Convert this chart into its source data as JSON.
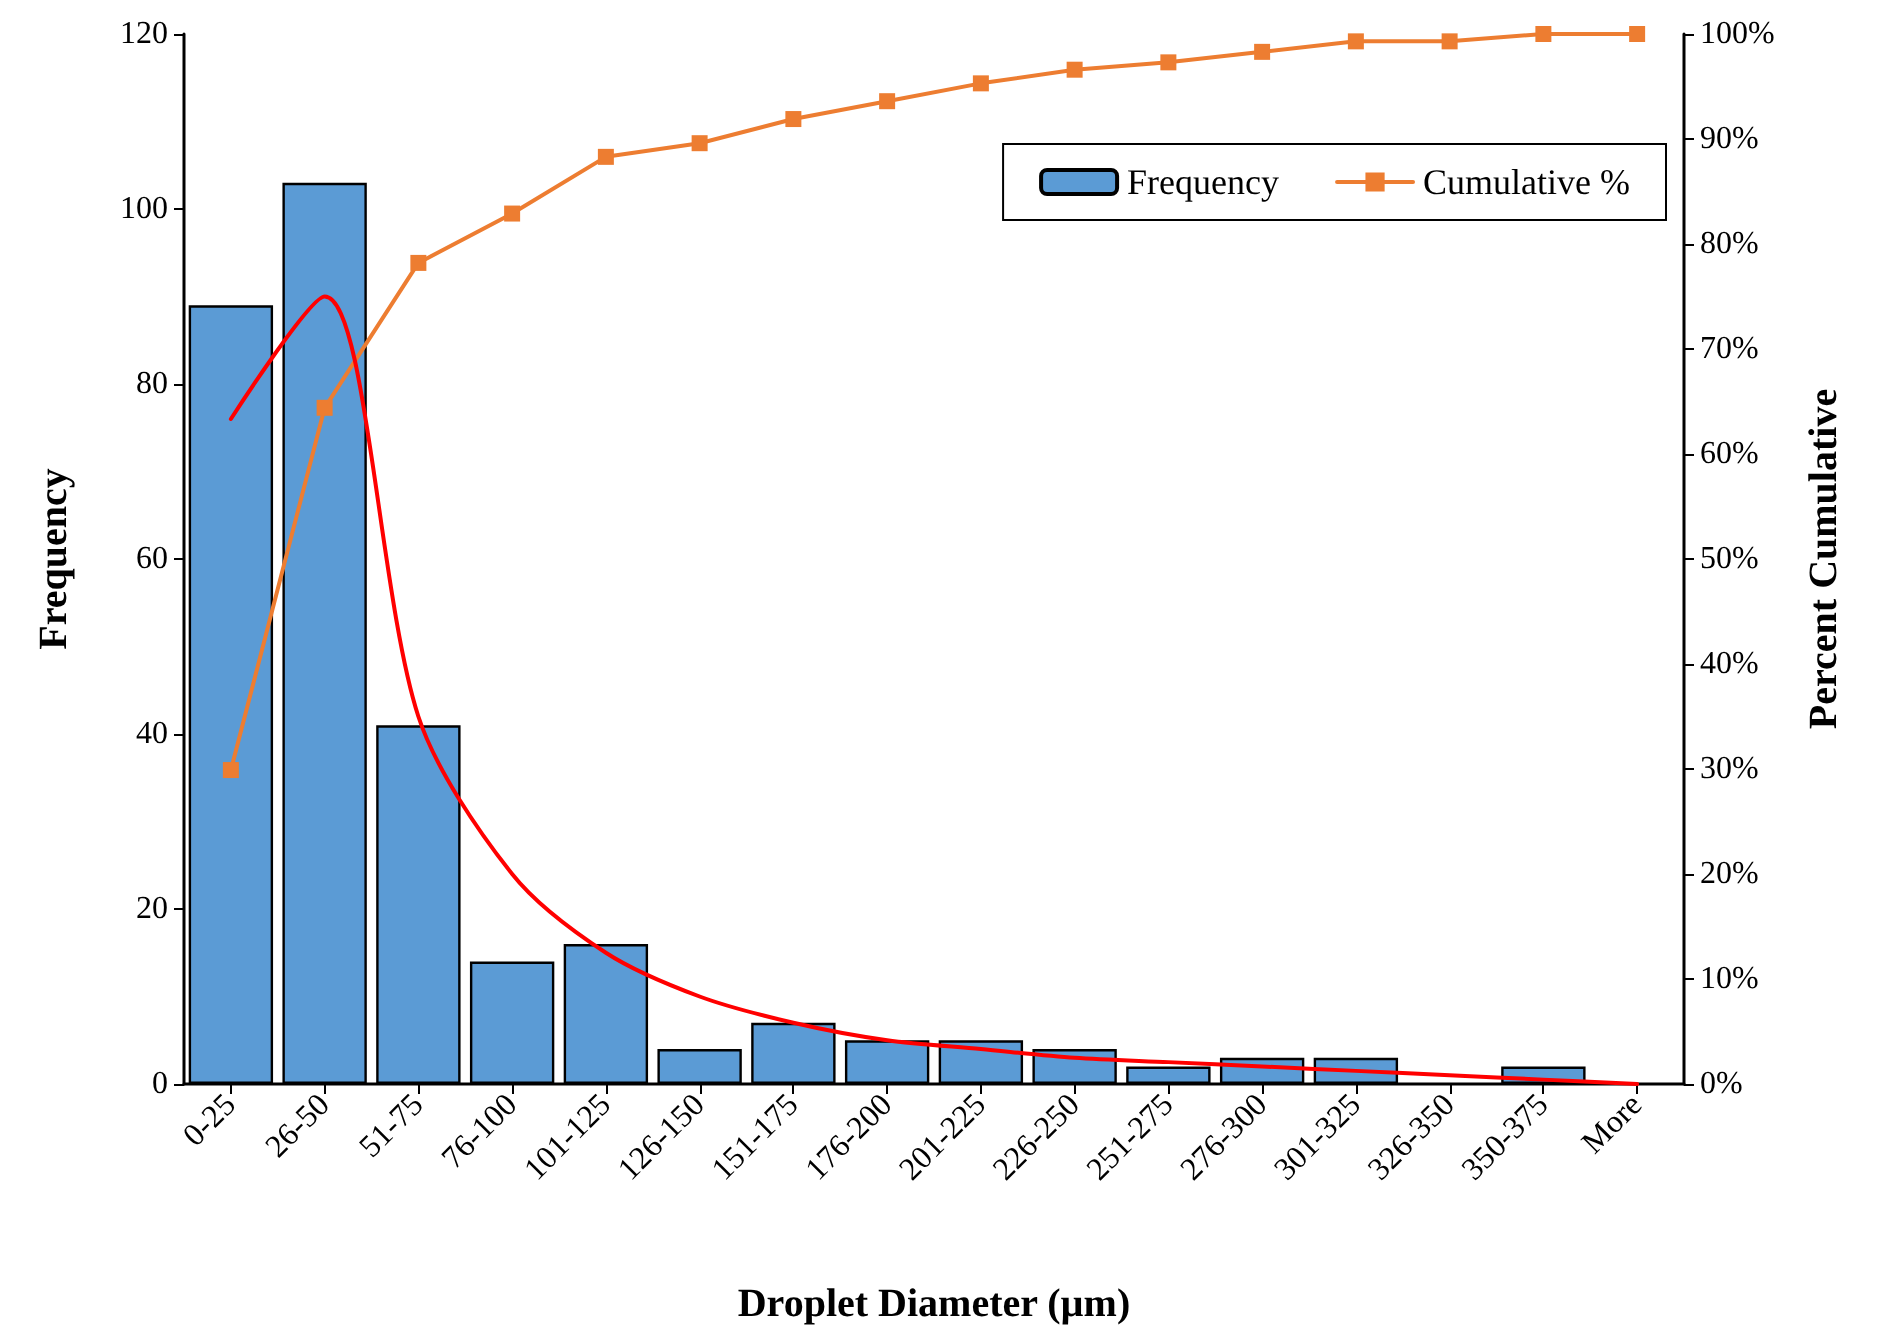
{
  "chart_data": {
    "type": "bar",
    "xlabel": "Droplet Diameter (µm)",
    "ylabel": "Frequency",
    "y2label": "Percent Cumulative",
    "categories": [
      "0-25",
      "26-50",
      "51-75",
      "76-100",
      "101-125",
      "126-150",
      "151-175",
      "176-200",
      "201-225",
      "226-250",
      "251-275",
      "276-300",
      "301-325",
      "326-350",
      "350-375",
      "More"
    ],
    "series": [
      {
        "name": "Frequency",
        "color": "#5b9bd5",
        "values": [
          89,
          103,
          41,
          14,
          16,
          4,
          7,
          5,
          5,
          4,
          2,
          3,
          3,
          0,
          2,
          0
        ]
      },
      {
        "name": "Cumulative %",
        "type": "line",
        "axis": "y2",
        "color": "#ed7d31",
        "marker": "square",
        "values": [
          29.9,
          64.4,
          78.2,
          82.9,
          88.3,
          89.6,
          91.9,
          93.6,
          95.3,
          96.6,
          97.3,
          98.3,
          99.3,
          99.3,
          100,
          100
        ]
      },
      {
        "type": "line",
        "color": "#ff0000",
        "marker": "none",
        "values": [
          76,
          90,
          42,
          24,
          15,
          10,
          7,
          5,
          4,
          3,
          2.5,
          2,
          1.5,
          1,
          0.5,
          0
        ]
      }
    ],
    "ylim": [
      0,
      120
    ],
    "yticks": [
      0,
      20,
      40,
      60,
      80,
      100,
      120
    ],
    "y2lim": [
      0,
      100
    ],
    "y2ticks": [
      {
        "value": 0,
        "label": "0%"
      },
      {
        "value": 10,
        "label": "10%"
      },
      {
        "value": 20,
        "label": "20%"
      },
      {
        "value": 30,
        "label": "30%"
      },
      {
        "value": 40,
        "label": "40%"
      },
      {
        "value": 50,
        "label": "50%"
      },
      {
        "value": 60,
        "label": "60%"
      },
      {
        "value": 70,
        "label": "70%"
      },
      {
        "value": 80,
        "label": "80%"
      },
      {
        "value": 90,
        "label": "90%"
      },
      {
        "value": 100,
        "label": "100%"
      }
    ],
    "grid": false,
    "legend": "top right"
  }
}
